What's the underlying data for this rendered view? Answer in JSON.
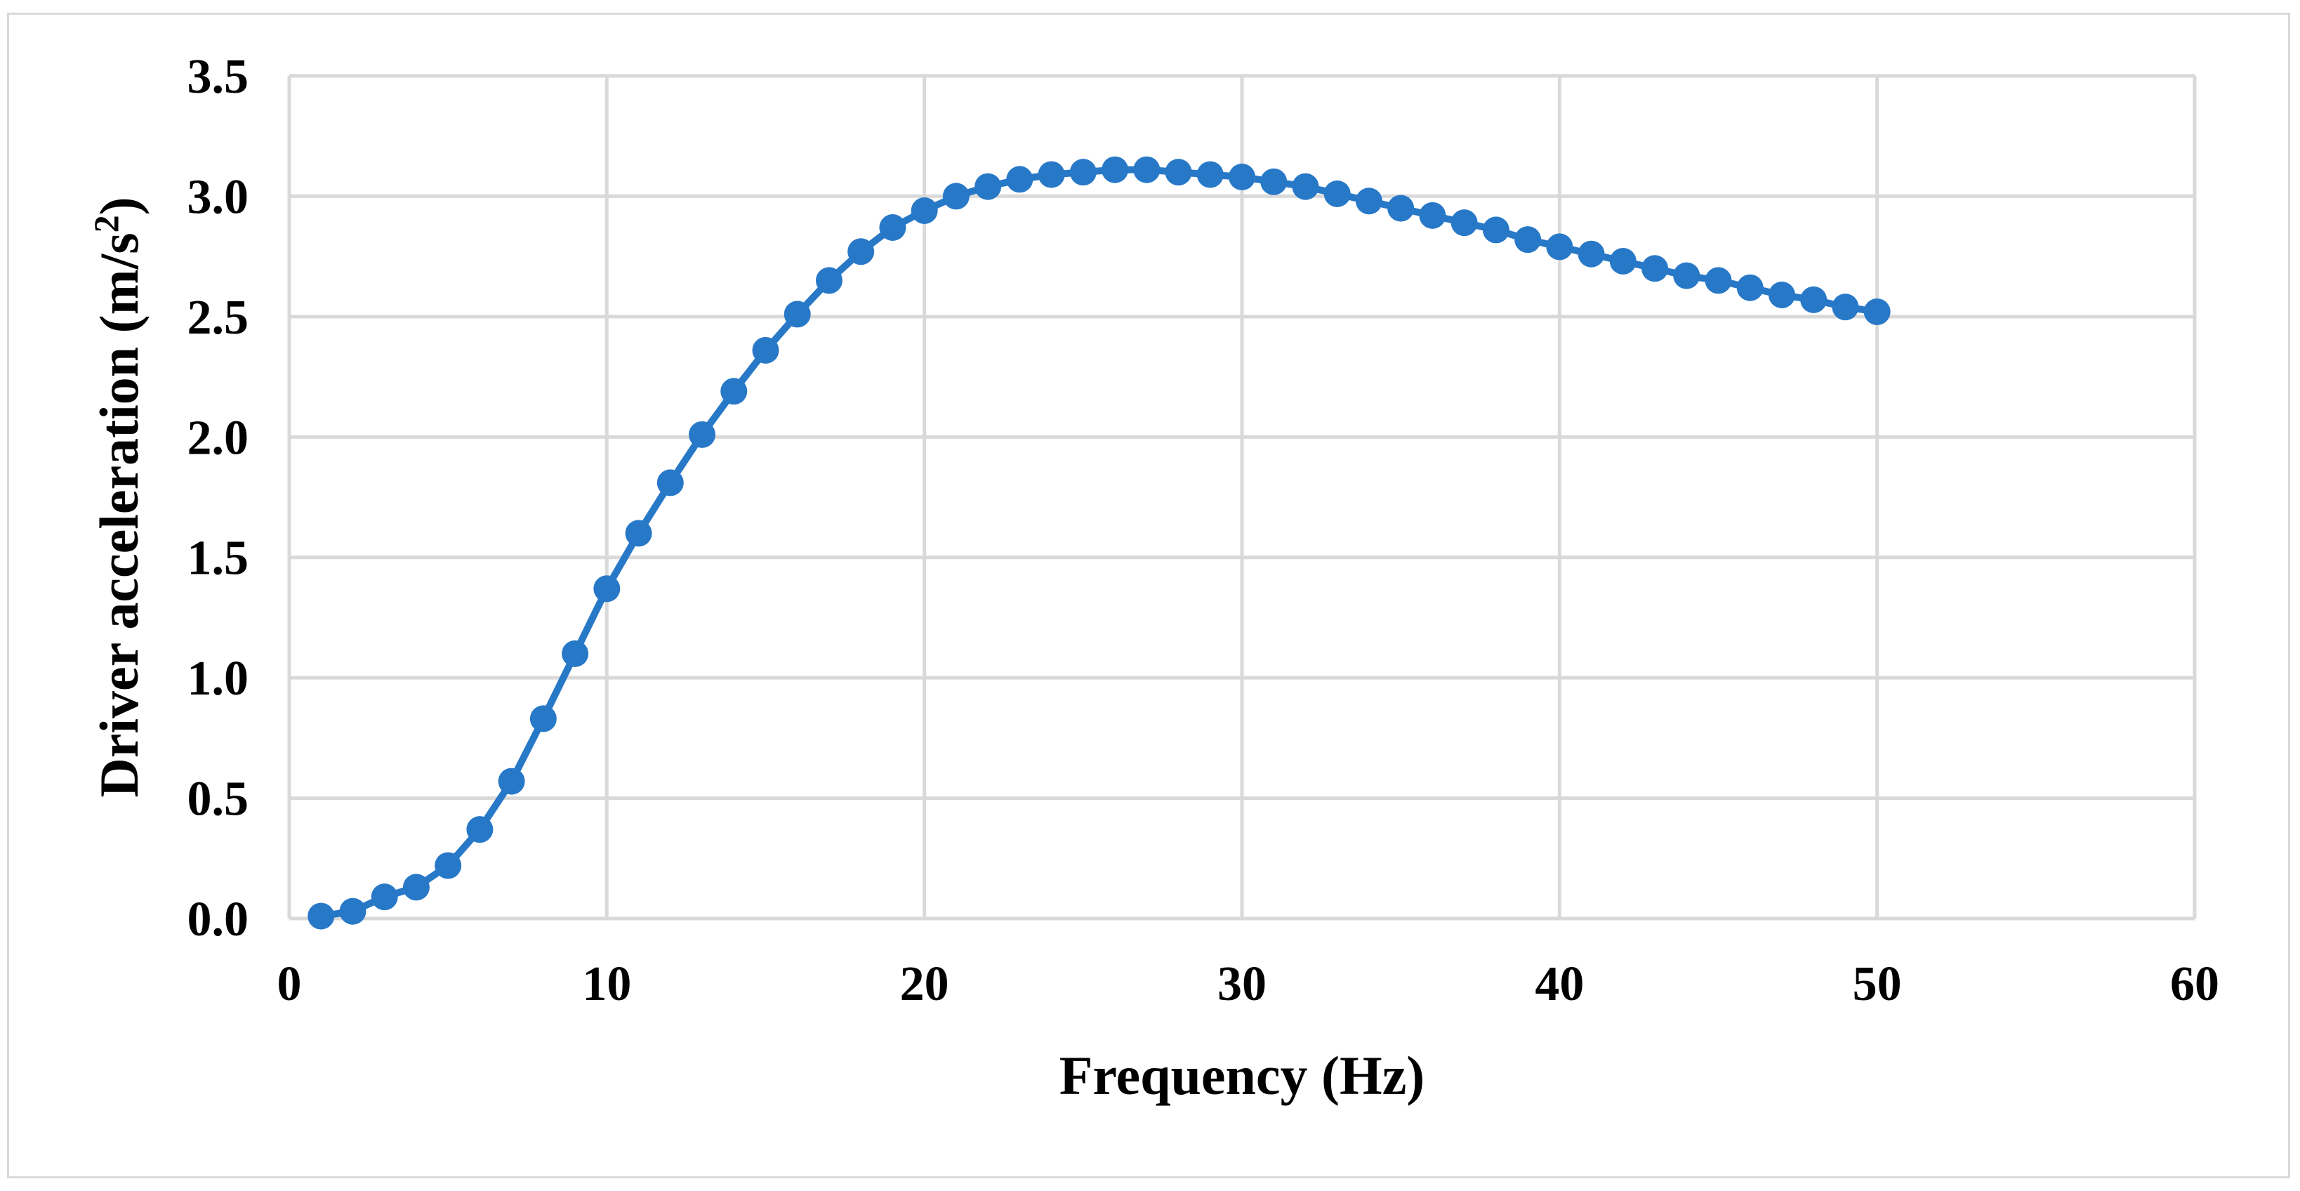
{
  "chart_data": {
    "type": "line",
    "title": "",
    "xlabel": "Frequency (Hz)",
    "ylabel": "Driver acceleration (m/s",
    "ylabel_superscript": "2",
    "ylabel_suffix": ")",
    "xlim": [
      0,
      60
    ],
    "ylim": [
      0,
      3.5
    ],
    "xticks": [
      0,
      10,
      20,
      30,
      40,
      50,
      60
    ],
    "yticks": [
      "0.0",
      "0.5",
      "1.0",
      "1.5",
      "2.0",
      "2.5",
      "3.0",
      "3.5"
    ],
    "grid": true,
    "legend": "none",
    "markers": true,
    "colors": {
      "series": "#2878c8",
      "grid": "#d9d9d9"
    },
    "series": [
      {
        "x": [
          1,
          2,
          3,
          4,
          5,
          6,
          7,
          8,
          9,
          10,
          11,
          12,
          13,
          14,
          15,
          16,
          17,
          18,
          19,
          20,
          21,
          22,
          23,
          24,
          25,
          26,
          27,
          28,
          29,
          30,
          31,
          32,
          33,
          34,
          35,
          36,
          37,
          38,
          39,
          40,
          41,
          42,
          43,
          44,
          45,
          46,
          47,
          48,
          49,
          50
        ],
        "values": [
          0.01,
          0.03,
          0.09,
          0.13,
          0.22,
          0.37,
          0.57,
          0.83,
          1.1,
          1.37,
          1.6,
          1.81,
          2.01,
          2.19,
          2.36,
          2.51,
          2.65,
          2.77,
          2.87,
          2.94,
          3.0,
          3.04,
          3.07,
          3.09,
          3.1,
          3.11,
          3.11,
          3.1,
          3.09,
          3.08,
          3.06,
          3.04,
          3.01,
          2.98,
          2.95,
          2.92,
          2.89,
          2.86,
          2.82,
          2.79,
          2.76,
          2.73,
          2.7,
          2.67,
          2.65,
          2.62,
          2.59,
          2.57,
          2.54,
          2.52
        ]
      }
    ]
  }
}
